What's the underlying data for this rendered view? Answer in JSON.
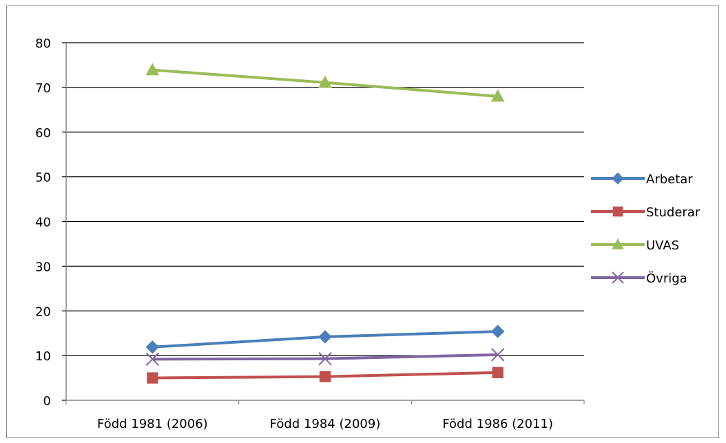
{
  "chart_data": {
    "type": "line",
    "title": "",
    "xlabel": "",
    "ylabel": "",
    "categories": [
      "Född 1981 (2006)",
      "Född 1984 (2009)",
      "Född 1986 (2011)"
    ],
    "ylim": [
      0,
      80
    ],
    "yticks": [
      0,
      10,
      20,
      30,
      40,
      50,
      60,
      70,
      80
    ],
    "grid": true,
    "legend_position": "right",
    "series": [
      {
        "name": "Arbetar",
        "values": [
          11.9,
          14.2,
          15.4
        ],
        "color": "#4a7ebb",
        "marker": "diamond"
      },
      {
        "name": "Studerar",
        "values": [
          5.0,
          5.3,
          6.2
        ],
        "color": "#c0504d",
        "marker": "square"
      },
      {
        "name": "UVAS",
        "values": [
          73.9,
          71.1,
          68.0
        ],
        "color": "#9bbb59",
        "marker": "triangle"
      },
      {
        "name": "Övriga",
        "values": [
          9.2,
          9.3,
          10.2
        ],
        "color": "#8064a2",
        "marker": "x"
      }
    ]
  }
}
